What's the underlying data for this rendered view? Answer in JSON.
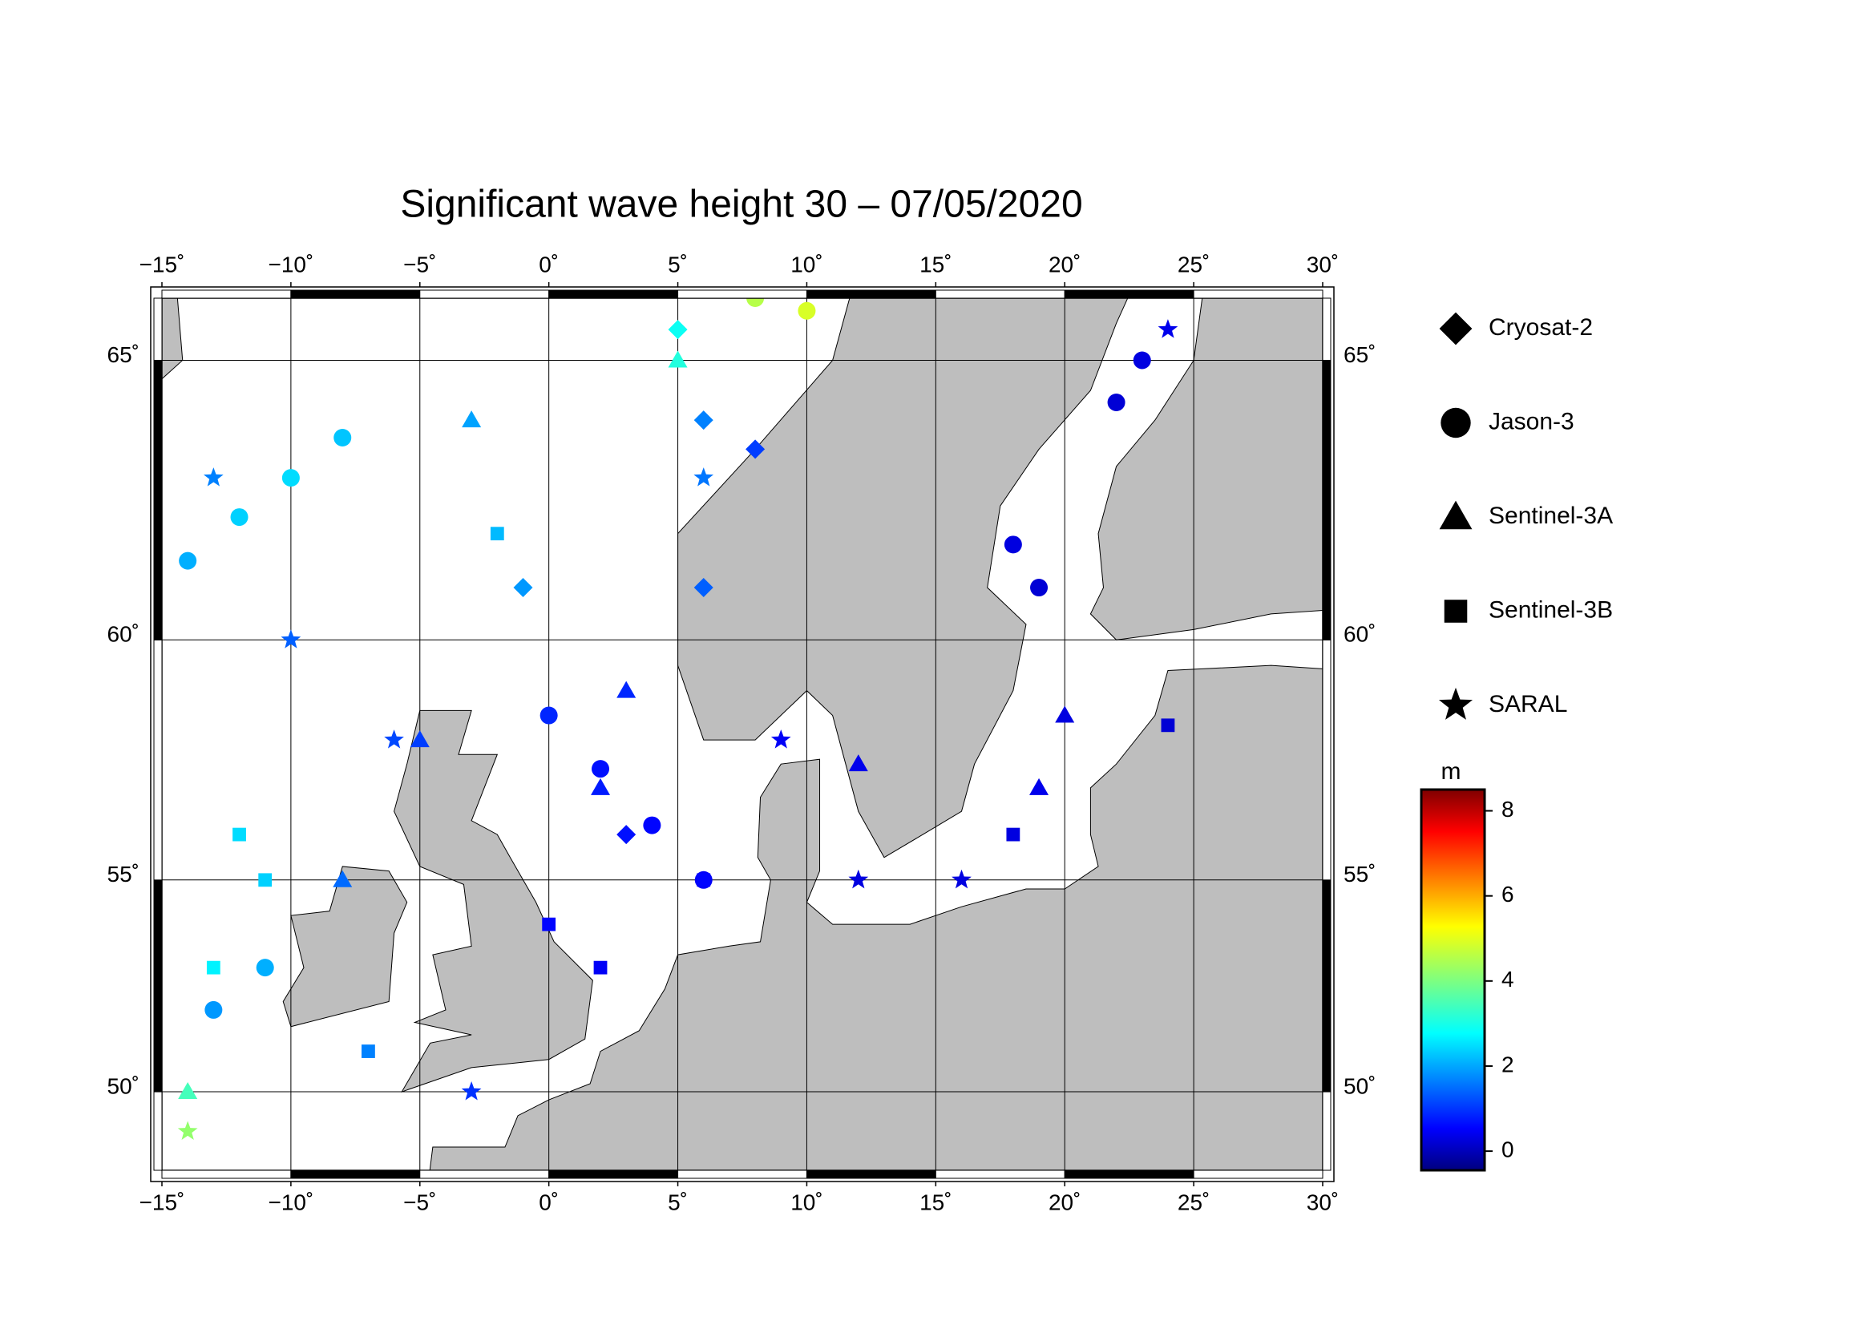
{
  "chart_data": {
    "type": "map",
    "title": "Significant wave height 30 – 07/05/2020",
    "xlim": [
      -15,
      30
    ],
    "ylim": [
      48,
      66
    ],
    "xticks": [
      {
        "value": -15,
        "label": "−15˚"
      },
      {
        "value": -10,
        "label": "−10˚"
      },
      {
        "value": -5,
        "label": "−5˚"
      },
      {
        "value": 0,
        "label": "0˚"
      },
      {
        "value": 5,
        "label": "5˚"
      },
      {
        "value": 10,
        "label": "10˚"
      },
      {
        "value": 15,
        "label": "15˚"
      },
      {
        "value": 20,
        "label": "20˚"
      },
      {
        "value": 25,
        "label": "25˚"
      },
      {
        "value": 30,
        "label": "30˚"
      }
    ],
    "yticks": [
      {
        "value": 50,
        "label": "50˚"
      },
      {
        "value": 55,
        "label": "55˚"
      },
      {
        "value": 60,
        "label": "60˚"
      },
      {
        "value": 65,
        "label": "65˚"
      }
    ],
    "grid": true,
    "colorbar": {
      "label": "m",
      "clim": [
        -0.45,
        8.5
      ],
      "ticks": [
        0,
        2,
        4,
        6,
        8
      ]
    },
    "series": [
      {
        "name": "Cryosat-2",
        "marker": "diamond",
        "x": [
          6,
          5,
          8,
          6,
          -1,
          3
        ],
        "y": [
          64,
          65.5,
          63.5,
          61,
          61,
          56
        ],
        "values": [
          1.8,
          3.0,
          1.2,
          1.5,
          2.0,
          0.8
        ]
      },
      {
        "name": "Jason-3",
        "marker": "circle",
        "x": [
          0,
          2,
          4,
          6,
          -14,
          -12,
          -10,
          -8,
          18,
          19,
          23,
          22,
          8,
          10,
          -13,
          -11
        ],
        "y": [
          58.5,
          57.4,
          56.2,
          55,
          61.5,
          62.3,
          63,
          63.7,
          61.8,
          61,
          65,
          64.3,
          66,
          65.8,
          52,
          53
        ],
        "values": [
          1.0,
          0.8,
          0.7,
          0.6,
          2.2,
          2.5,
          2.6,
          2.4,
          0.4,
          0.3,
          0.4,
          0.3,
          4.5,
          4.8,
          2.0,
          2.2
        ]
      },
      {
        "name": "Sentinel-3A",
        "marker": "triangle",
        "x": [
          3,
          2,
          -5,
          -8,
          19,
          20,
          -3,
          5,
          -14,
          12
        ],
        "y": [
          59,
          57,
          58,
          55,
          57,
          58.5,
          64,
          65,
          50,
          57.5
        ],
        "values": [
          1.0,
          0.9,
          1.2,
          1.6,
          0.5,
          0.4,
          2.1,
          3.2,
          3.5,
          0.5
        ]
      },
      {
        "name": "Sentinel-3B",
        "marker": "square",
        "x": [
          -12,
          -11,
          -7,
          0,
          2,
          18,
          24,
          -2,
          6,
          -13
        ],
        "y": [
          56,
          55,
          51,
          54,
          53,
          56,
          58.3,
          62,
          55,
          53
        ],
        "values": [
          2.6,
          2.5,
          1.8,
          0.7,
          0.6,
          0.4,
          0.3,
          2.3,
          0.7,
          2.8
        ]
      },
      {
        "name": "SARAL",
        "marker": "star",
        "x": [
          -13,
          -10,
          -6,
          6,
          24,
          16,
          12,
          -3,
          9,
          -14
        ],
        "y": [
          63,
          60,
          58,
          63,
          65.5,
          55,
          55,
          50,
          58,
          49
        ],
        "values": [
          1.8,
          1.5,
          1.3,
          1.7,
          0.5,
          0.4,
          0.4,
          1.1,
          0.6,
          4.2
        ]
      }
    ]
  }
}
